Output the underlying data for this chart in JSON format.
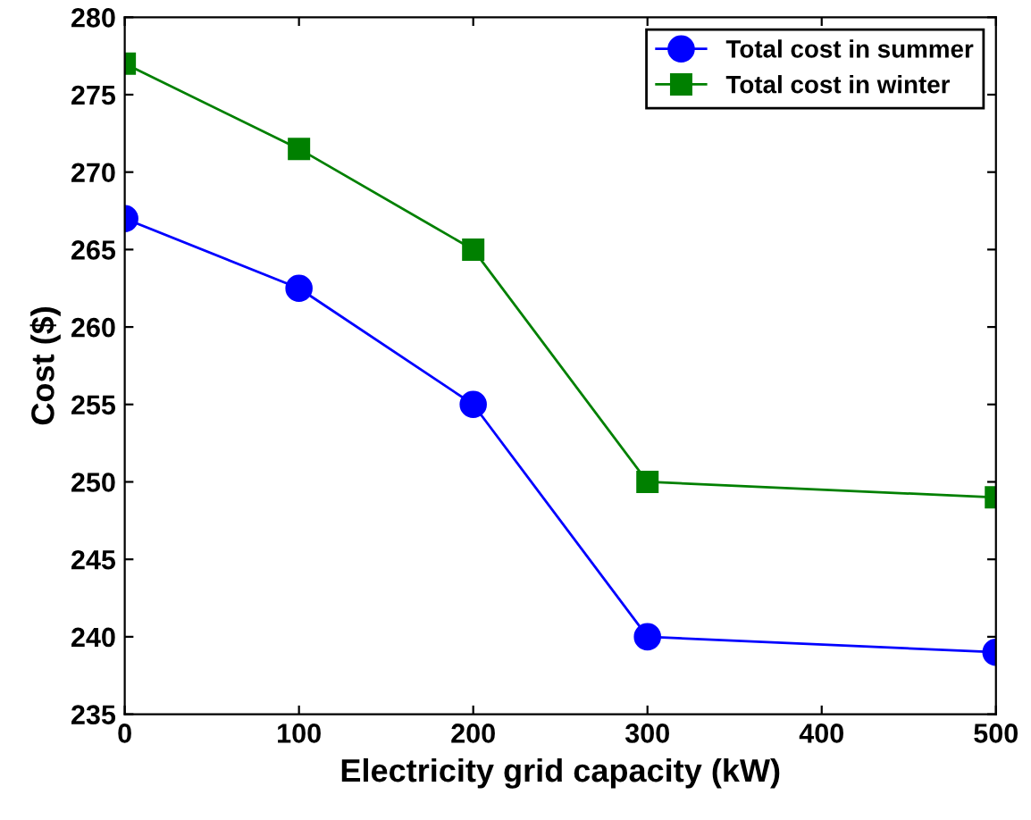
{
  "chart_data": {
    "type": "line",
    "xlabel": "Electricity grid capacity (kW)",
    "ylabel": "Cost ($)",
    "x": [
      0,
      100,
      200,
      300,
      500
    ],
    "series": [
      {
        "name": "Total cost in summer",
        "color": "#0000ff",
        "marker": "circle",
        "values": [
          267,
          262.5,
          255,
          240,
          239
        ]
      },
      {
        "name": "Total cost in winter",
        "color": "#008000",
        "marker": "square",
        "values": [
          277,
          271.5,
          265,
          250,
          249
        ]
      }
    ],
    "xlim": [
      0,
      500
    ],
    "xticks": [
      0,
      100,
      200,
      300,
      400,
      500
    ],
    "ylim": [
      235,
      280
    ],
    "yticks": [
      235,
      240,
      245,
      250,
      255,
      260,
      265,
      270,
      275,
      280
    ],
    "grid": false,
    "legend": "top right",
    "line_style": "solid"
  }
}
